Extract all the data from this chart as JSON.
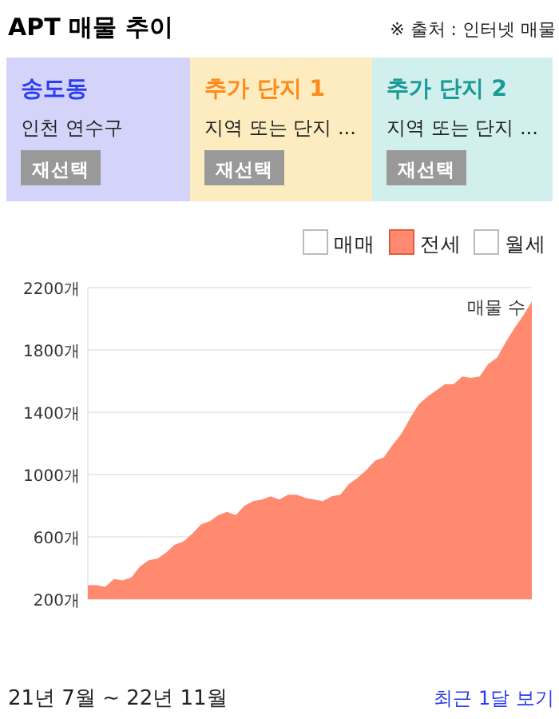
{
  "chart_data": {
    "type": "area",
    "title": "APT 매물 추이",
    "annotations": [
      "※ 출처 : 인터넷 매물",
      "송도동",
      "인천 연수구",
      "재선택",
      "추가 단지 1",
      "지역 또는 단지 ...",
      "재선택",
      "추가 단지 2",
      "지역 또는 단지 ...",
      "재선택",
      "매매",
      "월세",
      "매물 수",
      "21년 7월 ~ 22년 11월",
      "최근 1달 보기"
    ],
    "categories": [
      null,
      null,
      null,
      null,
      null,
      null,
      null,
      null,
      null,
      null,
      null,
      null,
      null,
      null,
      null,
      null,
      null,
      null,
      null,
      null,
      null,
      null,
      null,
      null,
      null,
      null,
      null,
      null,
      null,
      null,
      null,
      null,
      null,
      null,
      null,
      null,
      null,
      null,
      null,
      null,
      null,
      null,
      null,
      null,
      null,
      null,
      null,
      null,
      null,
      null,
      null,
      null
    ],
    "series": [
      {
        "name": "전세",
        "color": "#ff8a70",
        "values": [
          290,
          290,
          280,
          330,
          320,
          340,
          410,
          450,
          460,
          500,
          550,
          570,
          620,
          680,
          700,
          740,
          760,
          740,
          800,
          830,
          840,
          860,
          840,
          870,
          870,
          850,
          840,
          830,
          860,
          870,
          940,
          980,
          1030,
          1090,
          1110,
          1190,
          1260,
          1360,
          1450,
          1500,
          1540,
          1580,
          1580,
          1630,
          1620,
          1630,
          1710,
          1750,
          1850,
          1940,
          2020,
          2110
        ]
      }
    ],
    "ylim": [
      200,
      2200
    ],
    "yticks": [
      {
        "value": 200,
        "label": "200개"
      },
      {
        "value": 600,
        "label": "600개"
      },
      {
        "value": 1000,
        "label": "1000개"
      },
      {
        "value": 1400,
        "label": "1400개"
      },
      {
        "value": 1800,
        "label": "1800개"
      },
      {
        "value": 2200,
        "label": "2200개"
      }
    ],
    "grid": "y",
    "legend": "top right"
  }
}
